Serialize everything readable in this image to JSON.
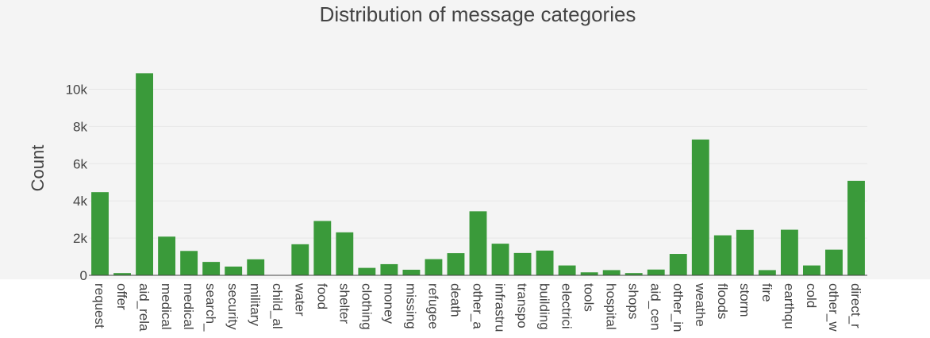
{
  "chart_data": {
    "type": "bar",
    "title": "Distribution of message categories",
    "xlabel": "",
    "ylabel": "Count",
    "ylim": [
      0,
      11000
    ],
    "yticks": [
      0,
      2000,
      4000,
      6000,
      8000,
      10000
    ],
    "ytick_labels": [
      "0",
      "2k",
      "4k",
      "6k",
      "8k",
      "10k"
    ],
    "grid": true,
    "categories": [
      "request",
      "offer",
      "aid_related",
      "medical_help",
      "medical_products",
      "search_and_rescue",
      "security",
      "military",
      "child_alone",
      "water",
      "food",
      "shelter",
      "clothing",
      "money",
      "missing_people",
      "refugees",
      "death",
      "other_aid",
      "infrastructure_related",
      "transport",
      "buildings",
      "electricity",
      "tools",
      "hospitals",
      "shops",
      "aid_centers",
      "other_infrastructure",
      "weather_related",
      "floods",
      "storm",
      "fire",
      "earthquake",
      "cold",
      "other_weather",
      "direct_report"
    ],
    "category_labels": [
      "request",
      "offer",
      "aid_rela",
      "medical",
      "medical",
      "search_",
      "security",
      "military",
      "child_al",
      "water",
      "food",
      "shelter",
      "clothing",
      "money",
      "missing",
      "refugee",
      "death",
      "other_a",
      "infrastru",
      "transpo",
      "building",
      "electrici",
      "tools",
      "hospital",
      "shops",
      "aid_cen",
      "other_in",
      "weathe",
      "floods",
      "storm",
      "fire",
      "earthqu",
      "cold",
      "other_w",
      "direct_r"
    ],
    "values": [
      4470,
      120,
      10860,
      2080,
      1310,
      720,
      470,
      860,
      0,
      1670,
      2920,
      2310,
      400,
      600,
      300,
      870,
      1190,
      3440,
      1700,
      1200,
      1330,
      530,
      160,
      280,
      120,
      310,
      1150,
      7300,
      2150,
      2440,
      280,
      2450,
      530,
      1380,
      5080
    ],
    "bar_color": "#3a9a3a",
    "plot_background": "#f4f4f4",
    "paper_background": "#ffffff"
  }
}
